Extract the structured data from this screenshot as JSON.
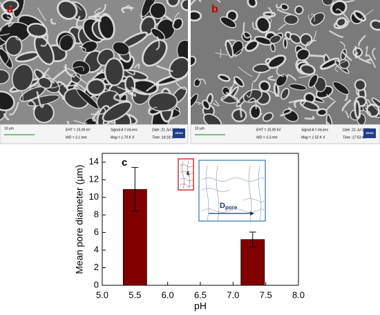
{
  "panels": [
    {
      "label": "a",
      "scale": "10 μm",
      "info": [
        "EHT = 15.00 kV",
        "WD = 3.1 mm",
        "Signal A = InLens",
        "Mag = 1.70 K X",
        "Date :21 Jul 2022",
        "Time :18:18:14"
      ],
      "logo": "ZEISS"
    },
    {
      "label": "b",
      "scale": "10 μm",
      "info": [
        "EHT = 15.00 kV",
        "WD = 3.3 mm",
        "Signal A = InLens",
        "Mag = 1.52 K X",
        "Date :21 Jul 2022",
        "Time :17:53:48"
      ],
      "logo": "ZEISS"
    }
  ],
  "chart_data": {
    "type": "bar",
    "annotation": "c",
    "x_label": "pH",
    "y_label": "Mean pore diameter (μm)",
    "x": [
      5.5,
      7.3
    ],
    "values": [
      10.9,
      5.2
    ],
    "errors": [
      2.5,
      0.85
    ],
    "color": "#800000",
    "xlim": [
      5.0,
      8.0
    ],
    "xticks": [
      {
        "value": 5.0,
        "label": "5.0"
      },
      {
        "value": 5.5,
        "label": "5.5"
      },
      {
        "value": 6.0,
        "label": "6.0"
      },
      {
        "value": 6.5,
        "label": "6.5"
      },
      {
        "value": 7.0,
        "label": "7.0"
      },
      {
        "value": 7.5,
        "label": "7.5"
      },
      {
        "value": 8.0,
        "label": "8.0"
      }
    ],
    "ylim": [
      0,
      15
    ],
    "yticks": [
      0,
      2,
      4,
      6,
      8,
      10,
      12,
      14
    ],
    "inset_labels": {
      "epsilon": "ε",
      "d": "D",
      "d_sub": "pore"
    }
  }
}
